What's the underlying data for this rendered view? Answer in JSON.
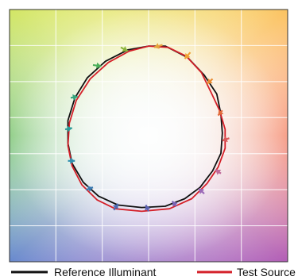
{
  "chart_data": {
    "type": "line",
    "xlim": [
      -1,
      1
    ],
    "ylim": [
      -1,
      1
    ],
    "grid": true,
    "legend_placement": "bottom",
    "series": [
      {
        "name": "Reference Illuminant",
        "color": "#111111",
        "points": [
          [
            0.0,
            0.71
          ],
          [
            0.12,
            0.71
          ],
          [
            0.28,
            0.62
          ],
          [
            0.4,
            0.48
          ],
          [
            0.49,
            0.33
          ],
          [
            0.52,
            0.17
          ],
          [
            0.53,
            0.02
          ],
          [
            0.52,
            -0.14
          ],
          [
            0.46,
            -0.28
          ],
          [
            0.37,
            -0.41
          ],
          [
            0.26,
            -0.5
          ],
          [
            0.12,
            -0.56
          ],
          [
            -0.05,
            -0.57
          ],
          [
            -0.22,
            -0.55
          ],
          [
            -0.36,
            -0.48
          ],
          [
            -0.47,
            -0.37
          ],
          [
            -0.55,
            -0.22
          ],
          [
            -0.58,
            -0.06
          ],
          [
            -0.58,
            0.12
          ],
          [
            -0.53,
            0.3
          ],
          [
            -0.44,
            0.46
          ],
          [
            -0.31,
            0.59
          ],
          [
            -0.15,
            0.68
          ],
          [
            0.0,
            0.71
          ]
        ]
      },
      {
        "name": "Test Source",
        "color": "#d42029",
        "points": [
          [
            0.0,
            0.71
          ],
          [
            0.14,
            0.7
          ],
          [
            0.27,
            0.63
          ],
          [
            0.38,
            0.5
          ],
          [
            0.45,
            0.34
          ],
          [
            0.51,
            0.2
          ],
          [
            0.55,
            0.05
          ],
          [
            0.55,
            -0.1
          ],
          [
            0.5,
            -0.25
          ],
          [
            0.42,
            -0.38
          ],
          [
            0.31,
            -0.5
          ],
          [
            0.15,
            -0.58
          ],
          [
            -0.05,
            -0.6
          ],
          [
            -0.24,
            -0.58
          ],
          [
            -0.37,
            -0.51
          ],
          [
            -0.48,
            -0.39
          ],
          [
            -0.55,
            -0.24
          ],
          [
            -0.58,
            -0.08
          ],
          [
            -0.57,
            0.1
          ],
          [
            -0.52,
            0.28
          ],
          [
            -0.42,
            0.45
          ],
          [
            -0.29,
            0.58
          ],
          [
            -0.14,
            0.67
          ],
          [
            0.0,
            0.71
          ]
        ]
      }
    ],
    "hue_arrows": [
      {
        "from": [
          0.1,
          0.72
        ],
        "to": [
          0.04,
          0.7
        ],
        "color": "#e5a43c"
      },
      {
        "from": [
          0.3,
          0.66
        ],
        "to": [
          0.26,
          0.61
        ],
        "color": "#f0a033"
      },
      {
        "from": [
          0.46,
          0.45
        ],
        "to": [
          0.42,
          0.41
        ],
        "color": "#e98b30"
      },
      {
        "from": [
          0.53,
          0.2
        ],
        "to": [
          0.5,
          0.16
        ],
        "color": "#e06a3a"
      },
      {
        "from": [
          0.58,
          -0.02
        ],
        "to": [
          0.53,
          -0.04
        ],
        "color": "#d85a5a"
      },
      {
        "from": [
          0.52,
          -0.3
        ],
        "to": [
          0.48,
          -0.27
        ],
        "color": "#c06a9a"
      },
      {
        "from": [
          0.4,
          -0.46
        ],
        "to": [
          0.36,
          -0.42
        ],
        "color": "#9c6ab8"
      },
      {
        "from": [
          0.2,
          -0.56
        ],
        "to": [
          0.17,
          -0.52
        ],
        "color": "#7a65b5"
      },
      {
        "from": [
          0.0,
          -0.6
        ],
        "to": [
          -0.02,
          -0.55
        ],
        "color": "#5b62b0"
      },
      {
        "from": [
          -0.25,
          -0.59
        ],
        "to": [
          -0.22,
          -0.54
        ],
        "color": "#4b6ab4"
      },
      {
        "from": [
          -0.45,
          -0.43
        ],
        "to": [
          -0.4,
          -0.41
        ],
        "color": "#3a79b0"
      },
      {
        "from": [
          -0.58,
          -0.2
        ],
        "to": [
          -0.53,
          -0.2
        ],
        "color": "#2f8fae"
      },
      {
        "from": [
          -0.6,
          0.05
        ],
        "to": [
          -0.55,
          0.06
        ],
        "color": "#2a9a98"
      },
      {
        "from": [
          -0.56,
          0.3
        ],
        "to": [
          -0.51,
          0.31
        ],
        "color": "#34a47c"
      },
      {
        "from": [
          -0.4,
          0.56
        ],
        "to": [
          -0.34,
          0.55
        ],
        "color": "#4caf5a"
      },
      {
        "from": [
          -0.2,
          0.7
        ],
        "to": [
          -0.15,
          0.67
        ],
        "color": "#8ab43c"
      }
    ],
    "legend": [
      {
        "label": "Reference Illuminant",
        "color": "#111111"
      },
      {
        "label": "Test Source",
        "color": "#d42029"
      }
    ]
  }
}
